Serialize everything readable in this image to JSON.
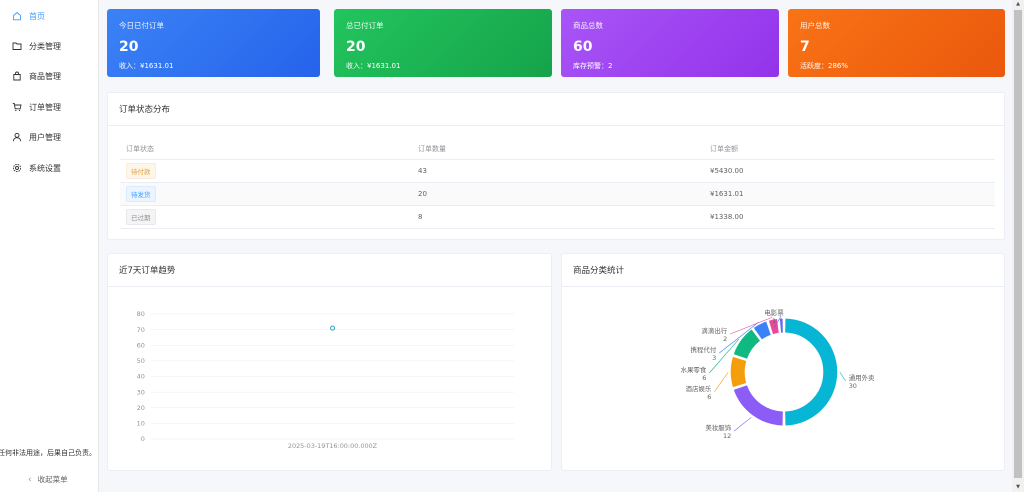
{
  "sidebar": {
    "items": [
      {
        "label": "首页",
        "icon": "home-icon",
        "active": true
      },
      {
        "label": "分类管理",
        "icon": "folder-icon",
        "active": false
      },
      {
        "label": "商品管理",
        "icon": "shopping-bag-icon",
        "active": false
      },
      {
        "label": "订单管理",
        "icon": "cart-icon",
        "active": false
      },
      {
        "label": "用户管理",
        "icon": "user-icon",
        "active": false
      },
      {
        "label": "系统设置",
        "icon": "gear-icon",
        "active": false
      }
    ],
    "notice": "任何非法用途，后果自己负责。",
    "collapse_label": "收起菜单",
    "collapse_icon": "‹"
  },
  "stats": [
    {
      "title": "今日已付订单",
      "value": "20",
      "sub": "收入：¥1631.01",
      "color": "#2f6ff0"
    },
    {
      "title": "总已付订单",
      "value": "20",
      "sub": "收入：¥1631.01",
      "color": "#1fb254"
    },
    {
      "title": "商品总数",
      "value": "60",
      "sub": "库存预警：2",
      "color": "#9b3ef0"
    },
    {
      "title": "用户总数",
      "value": "7",
      "sub": "活跃度：286%",
      "color": "#f26a14"
    }
  ],
  "order_status": {
    "title": "订单状态分布",
    "columns": [
      "订单状态",
      "订单数量",
      "订单金额"
    ],
    "rows": [
      {
        "status": "待付款",
        "type": "warning",
        "count": "43",
        "amount": "¥5430.00"
      },
      {
        "status": "待发货",
        "type": "primary",
        "count": "20",
        "amount": "¥1631.01"
      },
      {
        "status": "已过期",
        "type": "info",
        "count": "8",
        "amount": "¥1338.00"
      }
    ]
  },
  "trend": {
    "title": "近7天订单趋势"
  },
  "category": {
    "title": "商品分类统计"
  },
  "chart_data": [
    {
      "type": "line",
      "title": "近7天订单趋势",
      "x": [
        "2025-03-19T16:00:00.000Z"
      ],
      "series": [
        {
          "name": "订单",
          "values": [
            71
          ]
        }
      ],
      "yticks": [
        "0",
        "10",
        "20",
        "30",
        "40",
        "50",
        "60",
        "70",
        "80"
      ],
      "ylim": [
        0,
        80
      ],
      "grid": true,
      "color": "#3fb1c5"
    },
    {
      "type": "pie",
      "title": "商品分类统计",
      "donut": true,
      "categories": [
        "通用外卖",
        "美妆服饰",
        "酒店娱乐",
        "水果零食",
        "携程代付",
        "滴滴出行",
        "电影票"
      ],
      "values": [
        30,
        12,
        6,
        6,
        3,
        2,
        1
      ],
      "colors": [
        "#06b6d4",
        "#8b5cf6",
        "#f59e0b",
        "#10b981",
        "#10b981",
        "#3b82f6",
        "#ec4899",
        "#6366f1"
      ]
    }
  ]
}
